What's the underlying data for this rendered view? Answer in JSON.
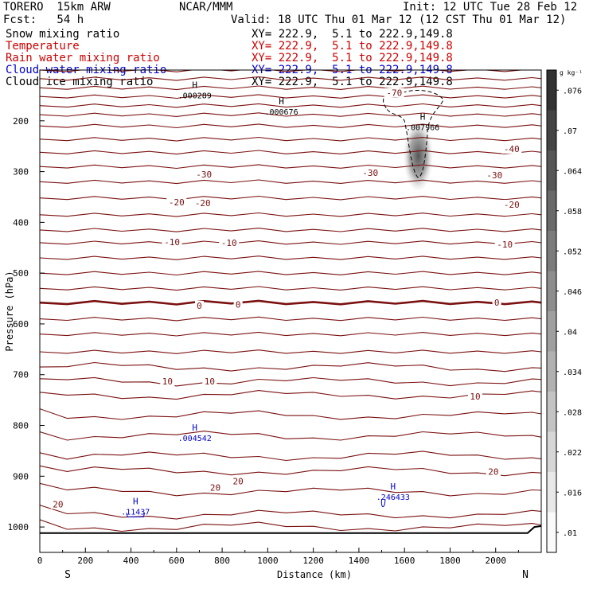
{
  "header": {
    "model": "TORERO  15km ARW",
    "org": "NCAR/MMM",
    "init": "Init: 12 UTC Tue 28 Feb 12",
    "fcst": "Fcst:   54 h",
    "valid": "Valid: 18 UTC Thu 01 Mar 12 (12 CST Thu 01 Mar 12)"
  },
  "legend": [
    {
      "name": "Snow mixing ratio",
      "xy": "XY= 222.9,  5.1 to 222.9,149.8",
      "color": "#000000"
    },
    {
      "name": "Temperature",
      "xy": "XY= 222.9,  5.1 to 222.9,149.8",
      "color": "#cc0000"
    },
    {
      "name": "Rain water mixing ratio",
      "xy": "XY= 222.9,  5.1 to 222.9,149.8",
      "color": "#cc0000"
    },
    {
      "name": "Cloud water mixing ratio",
      "xy": "XY= 222.9,  5.1 to 222.9,149.8",
      "color": "#0000cc"
    },
    {
      "name": "Cloud ice mixing ratio",
      "xy": "XY= 222.9,  5.1 to 222.9,149.8",
      "color": "#000000"
    }
  ],
  "chart_data": {
    "type": "cross-section",
    "xlabel": "Distance (km)",
    "ylabel": "Pressure (hPa)",
    "xlim": [
      0,
      2200
    ],
    "ylim": [
      1050,
      100
    ],
    "x_ticks": [
      "0",
      "200",
      "400",
      "600",
      "800",
      "1000",
      "1200",
      "1400",
      "1600",
      "1800",
      "2000"
    ],
    "y_ticks": [
      "200",
      "300",
      "400",
      "500",
      "600",
      "700",
      "800",
      "900",
      "1000"
    ],
    "endpoint_labels": {
      "left": "S",
      "right": "N"
    },
    "temperature_contour_labels": [
      {
        "text": "-70",
        "x": 1555,
        "p": 145
      },
      {
        "text": "-40",
        "x": 2070,
        "p": 255
      },
      {
        "text": "-30",
        "x": 720,
        "p": 305
      },
      {
        "text": "-30",
        "x": 1450,
        "p": 302
      },
      {
        "text": "-30",
        "x": 1995,
        "p": 307
      },
      {
        "text": "-20",
        "x": 600,
        "p": 360
      },
      {
        "text": "-20",
        "x": 715,
        "p": 362
      },
      {
        "text": "-20",
        "x": 2070,
        "p": 365
      },
      {
        "text": "-10",
        "x": 580,
        "p": 439
      },
      {
        "text": "-10",
        "x": 830,
        "p": 440
      },
      {
        "text": "-10",
        "x": 2040,
        "p": 443
      },
      {
        "text": "0",
        "x": 700,
        "p": 564
      },
      {
        "text": "0",
        "x": 870,
        "p": 562
      },
      {
        "text": "0",
        "x": 2005,
        "p": 558
      },
      {
        "text": "10",
        "x": 560,
        "p": 713
      },
      {
        "text": "10",
        "x": 745,
        "p": 713
      },
      {
        "text": "10",
        "x": 1910,
        "p": 743
      },
      {
        "text": "20",
        "x": 770,
        "p": 922
      },
      {
        "text": "20",
        "x": 870,
        "p": 910
      },
      {
        "text": "20",
        "x": 1990,
        "p": 891
      },
      {
        "text": "20",
        "x": 80,
        "p": 955
      }
    ],
    "maxima_labels": [
      {
        "letter": "H",
        "value": ".000289",
        "x": 680,
        "p": 140,
        "color": "#000000"
      },
      {
        "letter": "H",
        "value": ".000676",
        "x": 1060,
        "p": 172,
        "color": "#000000"
      },
      {
        "letter": "H",
        "value": ".007966",
        "x": 1680,
        "p": 203,
        "color": "#000000"
      },
      {
        "letter": "H",
        "value": ".004542",
        "x": 680,
        "p": 815,
        "color": "#0000cc"
      },
      {
        "letter": "H",
        "value": ".11437",
        "x": 420,
        "p": 960,
        "color": "#0000cc"
      },
      {
        "letter": "H",
        "value": ".246433",
        "x": 1550,
        "p": 931,
        "color": "#0000cc"
      }
    ],
    "colorbar": {
      "unit": "g kg⁻¹",
      "ticks": [
        ".01",
        ".016",
        ".022",
        ".028",
        ".034",
        ".04",
        ".046",
        ".052",
        ".058",
        ".064",
        ".07",
        ".076"
      ],
      "range": [
        0.007,
        0.079
      ]
    }
  }
}
